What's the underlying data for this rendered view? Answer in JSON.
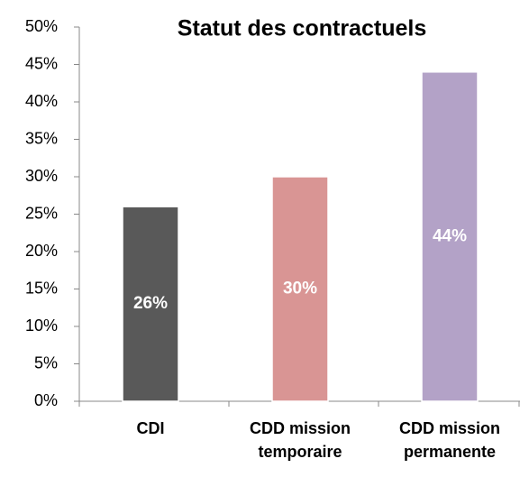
{
  "chart_data": {
    "type": "bar",
    "title": "Statut des contractuels",
    "categories": [
      "CDI",
      "CDD mission temporaire",
      "CDD mission permanente"
    ],
    "values": [
      26,
      30,
      44
    ],
    "value_labels": [
      "26%",
      "30%",
      "44%"
    ],
    "colors": [
      "#595959",
      "#d99594",
      "#b3a2c7"
    ],
    "ylim": [
      0,
      50
    ],
    "yticks": [
      {
        "value": 0,
        "label": "0%"
      },
      {
        "value": 5,
        "label": "5%"
      },
      {
        "value": 10,
        "label": "10%"
      },
      {
        "value": 15,
        "label": "15%"
      },
      {
        "value": 20,
        "label": "20%"
      },
      {
        "value": 25,
        "label": "25%"
      },
      {
        "value": 30,
        "label": "30%"
      },
      {
        "value": 35,
        "label": "35%"
      },
      {
        "value": 40,
        "label": "40%"
      },
      {
        "value": 45,
        "label": "45%"
      },
      {
        "value": 50,
        "label": "50%"
      }
    ],
    "grid": false
  }
}
